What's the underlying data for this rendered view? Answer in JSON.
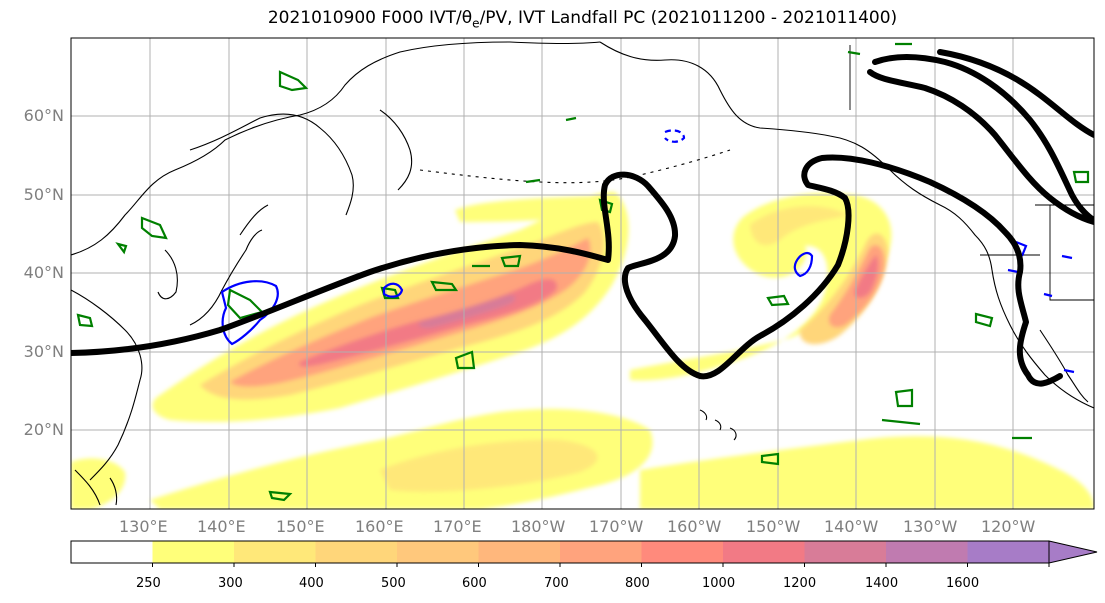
{
  "title": {
    "prefix": "2021010900 F000 IVT/",
    "theta": "θ",
    "theta_sub": "e",
    "suffix": "/PV, IVT Landfall PC (2021011200 - 2021011400)"
  },
  "axes": {
    "lat_labels": [
      "60°N",
      "50°N",
      "40°N",
      "30°N",
      "20°N"
    ],
    "lon_labels": [
      "130°E",
      "140°E",
      "150°E",
      "160°E",
      "170°E",
      "180°W",
      "170°W",
      "160°W",
      "150°W",
      "140°W",
      "130°W",
      "120°W"
    ]
  },
  "colorbar": {
    "ticks": [
      "250",
      "300",
      "400",
      "500",
      "600",
      "700",
      "800",
      "1000",
      "1200",
      "1400",
      "1600"
    ],
    "colors": [
      "#ffffff",
      "#ffff7a",
      "#ffe879",
      "#ffd67a",
      "#ffc87c",
      "#ffb77c",
      "#ffa37d",
      "#ff8a7c",
      "#f27a85",
      "#d87c98",
      "#c07bb0",
      "#a77cc7"
    ]
  },
  "colors": {
    "pv_contour": "#000000",
    "theta_e_positive": "#008000",
    "theta_e_negative": "#0000ff",
    "coastline": "#000000",
    "grid": "#b0b0b0",
    "tick_label": "#7f7f7f"
  }
}
